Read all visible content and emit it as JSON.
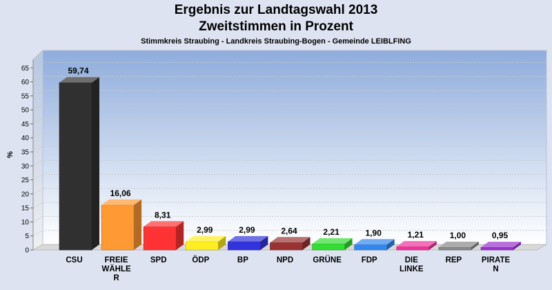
{
  "chart_data": {
    "type": "bar",
    "title": "Ergebnis zur Landtagswahl 2013",
    "subtitle": "Zweitstimmen in Prozent",
    "subtitle2": "Stimmkreis Straubing - Landkreis Straubing-Bogen - Gemeinde LEIBLFING",
    "ylabel": "%",
    "ylim": [
      0,
      70
    ],
    "yticks": [
      0,
      5,
      10,
      15,
      20,
      25,
      30,
      35,
      40,
      45,
      50,
      55,
      60,
      65
    ],
    "categories": [
      [
        "CSU"
      ],
      [
        "FREIE",
        "WÄHLE",
        "R"
      ],
      [
        "SPD"
      ],
      [
        "ÖDP"
      ],
      [
        "BP"
      ],
      [
        "NPD"
      ],
      [
        "GRÜNE"
      ],
      [
        "FDP"
      ],
      [
        "DIE",
        "LINKE"
      ],
      [
        "REP"
      ],
      [
        "PIRATE",
        "N"
      ]
    ],
    "values": [
      59.74,
      16.06,
      8.31,
      2.99,
      2.99,
      2.64,
      2.21,
      1.9,
      1.21,
      1.0,
      0.95
    ],
    "value_labels": [
      "59,74",
      "16,06",
      "8,31",
      "2,99",
      "2,99",
      "2,64",
      "2,21",
      "1,90",
      "1,21",
      "1,00",
      "0,95"
    ],
    "colors": [
      "#303030",
      "#ff9933",
      "#ff3333",
      "#ffee22",
      "#3333dd",
      "#993333",
      "#33dd33",
      "#3388ee",
      "#ee3399",
      "#888888",
      "#9933cc"
    ],
    "grid": true
  }
}
